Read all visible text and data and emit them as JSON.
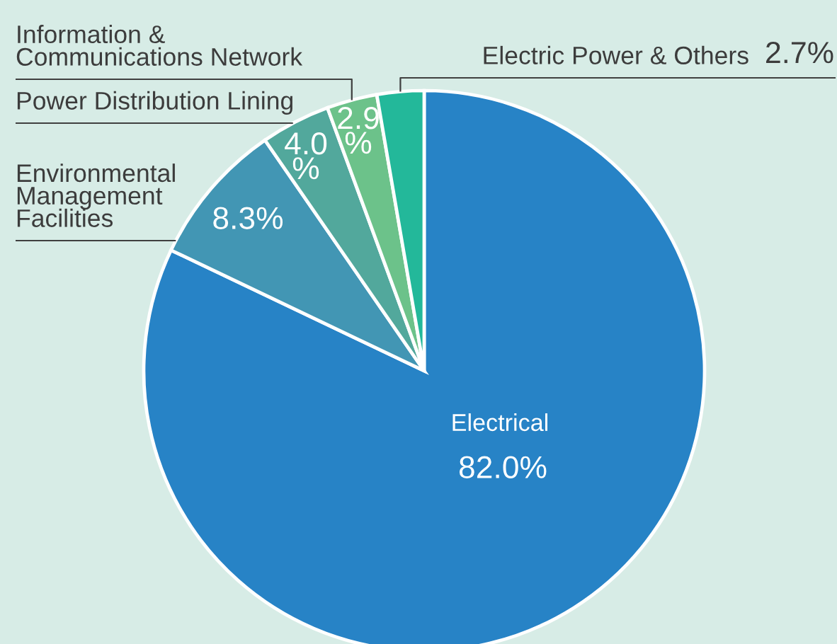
{
  "chart_data": {
    "type": "pie",
    "categories": [
      "Electrical",
      "Environmental\nManagement\nFacilities",
      "Power Distribution Lining",
      "Information &\nCommunications Network",
      "Electric Power & Others"
    ],
    "values": [
      82.0,
      8.3,
      4.0,
      2.9,
      2.7
    ],
    "colors": [
      "#2783c6",
      "#4296b4",
      "#52a89c",
      "#6cc28a",
      "#23b89a"
    ],
    "value_labels": [
      "82.0%",
      "8.3%",
      "4.0\n%",
      "2.9\n%",
      "2.7%"
    ]
  }
}
